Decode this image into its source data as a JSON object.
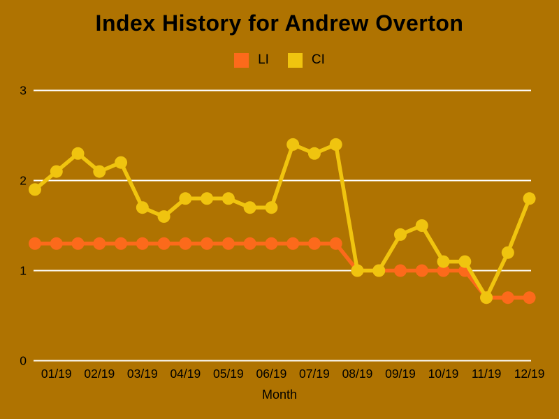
{
  "chart_data": {
    "type": "line",
    "title": "Index History for Andrew Overton",
    "xlabel": "Month",
    "ylabel": "",
    "ylim": [
      0,
      3
    ],
    "yticks": [
      0,
      1,
      2,
      3
    ],
    "x_tick_labels": [
      "01/19",
      "02/19",
      "03/19",
      "04/19",
      "05/19",
      "06/19",
      "07/19",
      "08/19",
      "09/19",
      "10/19",
      "11/19",
      "12/19"
    ],
    "x_points_per_month": 2,
    "series": [
      {
        "name": "LI",
        "color": "#FC6A1B",
        "values": [
          1.3,
          1.3,
          1.3,
          1.3,
          1.3,
          1.3,
          1.3,
          1.3,
          1.3,
          1.3,
          1.3,
          1.3,
          1.3,
          1.3,
          1.3,
          1.0,
          1.0,
          1.0,
          1.0,
          1.0,
          1.0,
          0.7,
          0.7,
          0.7
        ]
      },
      {
        "name": "CI",
        "color": "#F0C40F",
        "values": [
          1.9,
          2.1,
          2.3,
          2.1,
          2.2,
          1.7,
          1.6,
          1.8,
          1.8,
          1.8,
          1.7,
          1.7,
          2.4,
          2.3,
          2.4,
          1.0,
          1.0,
          1.4,
          1.5,
          1.1,
          1.1,
          0.7,
          1.2,
          1.8
        ]
      }
    ],
    "legend_position": "top-center",
    "grid": true,
    "grid_color": "#FFFFFF",
    "background_color": "#AF7301",
    "text_color": "#000000"
  }
}
